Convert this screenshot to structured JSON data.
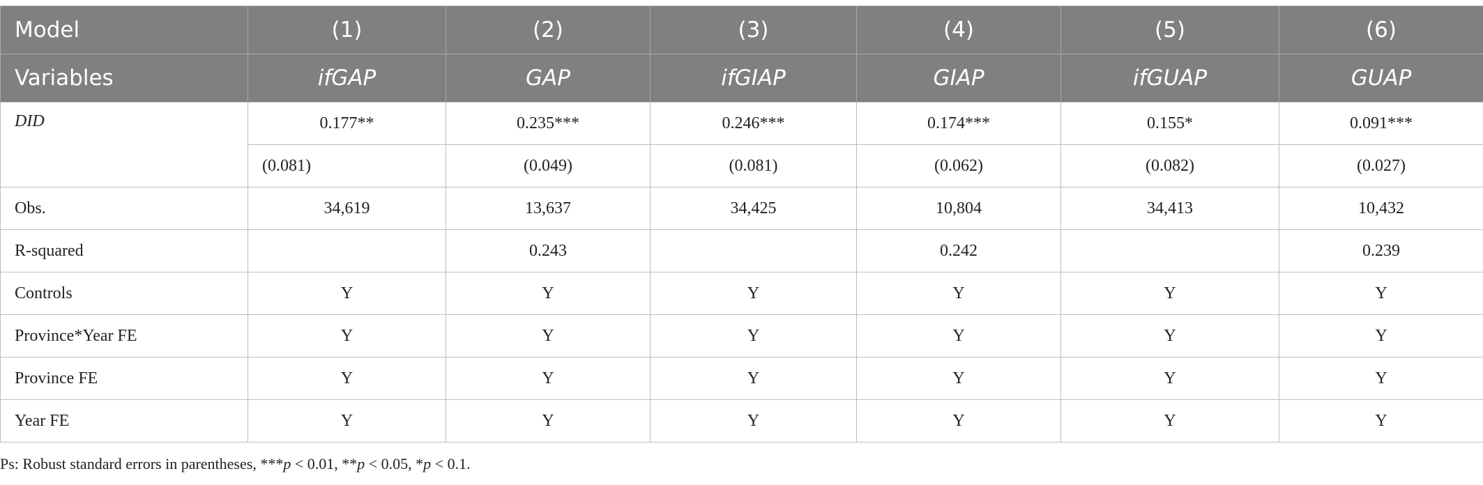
{
  "header": {
    "rows": [
      [
        "Model",
        "(1)",
        "(2)",
        "(3)",
        "(4)",
        "(5)",
        "(6)"
      ],
      [
        "Variables",
        "ifGAP",
        "GAP",
        "ifGIAP",
        "GIAP",
        "ifGUAP",
        "GUAP"
      ]
    ]
  },
  "table": {
    "rows": [
      {
        "label": "DID",
        "values": [
          "0.177**",
          "0.235***",
          "0.246***",
          "0.174***",
          "0.155*",
          "0.091***"
        ],
        "se": [
          "(0.081)",
          "(0.049)",
          "(0.081)",
          "(0.062)",
          "(0.082)",
          "(0.027)"
        ]
      },
      {
        "label": "Obs.",
        "values": [
          "34,619",
          "13,637",
          "34,425",
          "10,804",
          "34,413",
          "10,432"
        ]
      },
      {
        "label": "R-squared",
        "values": [
          null,
          "0.243",
          null,
          "0.242",
          null,
          "0.239"
        ]
      },
      {
        "label": "Controls",
        "values": [
          "Y",
          "Y",
          "Y",
          "Y",
          "Y",
          "Y"
        ]
      },
      {
        "label": "Province*Year FE",
        "values": [
          "Y",
          "Y",
          "Y",
          "Y",
          "Y",
          "Y"
        ]
      },
      {
        "label": "Province FE",
        "values": [
          "Y",
          "Y",
          "Y",
          "Y",
          "Y",
          "Y"
        ]
      },
      {
        "label": "Year FE",
        "values": [
          "Y",
          "Y",
          "Y",
          "Y",
          "Y",
          "Y"
        ]
      }
    ]
  },
  "footnote": [
    "Ps: Robust standard errors in parentheses, ***",
    "p",
    " < 0.01, **",
    "p",
    " < 0.05, *",
    "p",
    " < 0.1."
  ]
}
